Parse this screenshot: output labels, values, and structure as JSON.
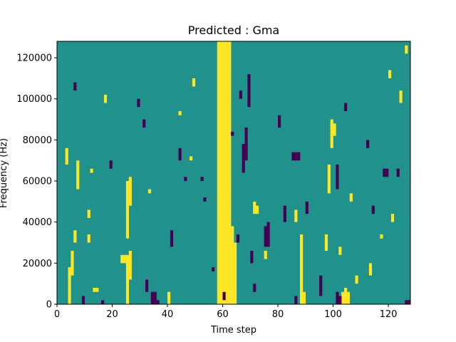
{
  "chart_data": {
    "type": "heatmap",
    "title": "Predicted : Gma",
    "xlabel": "Time step",
    "ylabel": "Frequency (Hz)",
    "xlim": [
      0,
      128
    ],
    "ylim": [
      0,
      128000
    ],
    "n_time_steps": 128,
    "n_freq_bins": 64,
    "bin_height_hz": 2000,
    "xticks": [
      0,
      20,
      40,
      60,
      80,
      100,
      120
    ],
    "yticks": [
      0,
      20000,
      40000,
      60000,
      80000,
      100000,
      120000
    ],
    "xtick_labels": [
      "0",
      "20",
      "40",
      "60",
      "80",
      "100",
      "120"
    ],
    "ytick_labels": [
      "0",
      "20000",
      "40000",
      "60000",
      "80000",
      "100000",
      "120000"
    ],
    "colors": {
      "background": "#21918c",
      "high": "#fde725",
      "low": "#440154"
    },
    "high_cells": [
      [
        58,
        0,
        128000
      ],
      [
        59,
        0,
        128000
      ],
      [
        60,
        0,
        128000
      ],
      [
        61,
        0,
        128000
      ],
      [
        62,
        0,
        128000
      ],
      [
        63,
        0,
        38000
      ],
      [
        64,
        0,
        30000
      ],
      [
        25,
        0,
        24000
      ],
      [
        25,
        32000,
        60000
      ],
      [
        26,
        12000,
        26000
      ],
      [
        26,
        48000,
        62000
      ],
      [
        4,
        0,
        18000
      ],
      [
        5,
        14000,
        26000
      ],
      [
        7,
        56000,
        70000
      ],
      [
        6,
        30000,
        36000
      ],
      [
        3,
        68000,
        76000
      ],
      [
        88,
        0,
        34000
      ],
      [
        89,
        0,
        6000
      ],
      [
        98,
        54000,
        68000
      ],
      [
        97,
        26000,
        34000
      ],
      [
        103,
        0,
        6000
      ],
      [
        104,
        0,
        8000
      ],
      [
        105,
        0,
        6000
      ],
      [
        40,
        0,
        6000
      ],
      [
        44,
        92000,
        94000
      ],
      [
        13,
        6000,
        8000
      ],
      [
        14,
        6000,
        8000
      ],
      [
        23,
        20000,
        24000
      ],
      [
        24,
        20000,
        24000
      ],
      [
        33,
        54000,
        56000
      ],
      [
        11,
        42000,
        46000
      ],
      [
        11,
        30000,
        34000
      ],
      [
        12,
        64000,
        66000
      ],
      [
        17,
        98000,
        102000
      ],
      [
        48,
        70000,
        72000
      ],
      [
        49,
        106000,
        110000
      ],
      [
        71,
        44000,
        50000
      ],
      [
        72,
        44000,
        48000
      ],
      [
        75,
        22000,
        26000
      ],
      [
        86,
        40000,
        46000
      ],
      [
        99,
        76000,
        90000
      ],
      [
        100,
        82000,
        88000
      ],
      [
        102,
        24000,
        28000
      ],
      [
        106,
        50000,
        54000
      ],
      [
        108,
        10000,
        14000
      ],
      [
        113,
        14000,
        20000
      ],
      [
        117,
        32000,
        34000
      ],
      [
        120,
        110000,
        114000
      ],
      [
        121,
        40000,
        44000
      ],
      [
        124,
        98000,
        104000
      ],
      [
        126,
        122000,
        126000
      ]
    ],
    "low_cells": [
      [
        65,
        30000,
        34000
      ],
      [
        66,
        100000,
        104000
      ],
      [
        67,
        64000,
        78000
      ],
      [
        68,
        70000,
        86000
      ],
      [
        69,
        96000,
        112000
      ],
      [
        70,
        20000,
        26000
      ],
      [
        34,
        0,
        6000
      ],
      [
        35,
        0,
        6000
      ],
      [
        36,
        0,
        2000
      ],
      [
        32,
        6000,
        12000
      ],
      [
        86,
        0,
        4000
      ],
      [
        82,
        40000,
        48000
      ],
      [
        85,
        70000,
        74000
      ],
      [
        86,
        70000,
        74000
      ],
      [
        87,
        70000,
        74000
      ],
      [
        101,
        0,
        6000
      ],
      [
        102,
        0,
        4000
      ],
      [
        126,
        0,
        2000
      ],
      [
        127,
        0,
        2000
      ],
      [
        75,
        28000,
        38000
      ],
      [
        76,
        28000,
        40000
      ],
      [
        101,
        56000,
        68000
      ],
      [
        118,
        62000,
        66000
      ],
      [
        119,
        62000,
        66000
      ],
      [
        9,
        0,
        4000
      ],
      [
        16,
        0,
        2000
      ],
      [
        52,
        60000,
        62000
      ],
      [
        53,
        50000,
        52000
      ],
      [
        56,
        16000,
        18000
      ],
      [
        60,
        2000,
        6000
      ],
      [
        63,
        82000,
        84000
      ],
      [
        41,
        28000,
        36000
      ],
      [
        44,
        70000,
        76000
      ],
      [
        46,
        60000,
        62000
      ],
      [
        71,
        6000,
        10000
      ],
      [
        80,
        86000,
        92000
      ],
      [
        90,
        44000,
        50000
      ],
      [
        95,
        4000,
        14000
      ],
      [
        112,
        76000,
        80000
      ],
      [
        114,
        44000,
        48000
      ],
      [
        123,
        62000,
        66000
      ],
      [
        6,
        104000,
        108000
      ],
      [
        29,
        96000,
        100000
      ],
      [
        31,
        86000,
        90000
      ],
      [
        19,
        66000,
        70000
      ],
      [
        104,
        94000,
        98000
      ]
    ]
  }
}
